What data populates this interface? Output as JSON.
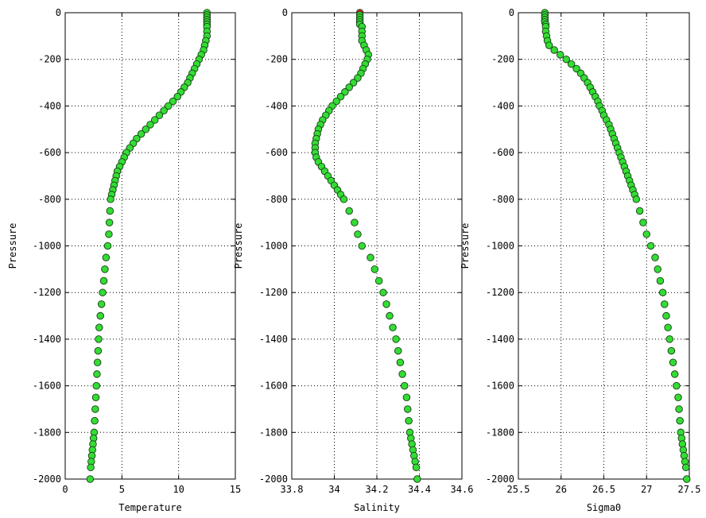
{
  "chart_data": [
    {
      "type": "scatter",
      "xlabel": "Temperature",
      "ylabel": "Pressure",
      "xlim": [
        0,
        15
      ],
      "ylim": [
        -2000,
        0
      ],
      "xticks": [
        "0",
        "5",
        "10",
        "15"
      ],
      "yticks": [
        "0",
        "-200",
        "-400",
        "-600",
        "-800",
        "-1000",
        "-1200",
        "-1400",
        "-1600",
        "-1800",
        "-2000"
      ],
      "grid": true,
      "marker_color": "#33dd33",
      "highlight_color": "#dd2222",
      "series": [
        {
          "x": [
            12.5,
            12.5,
            12.5,
            12.5,
            12.5,
            12.5,
            12.5,
            12.5,
            12.5,
            12.4,
            12.3,
            12.2,
            12.0,
            11.8,
            11.6,
            11.4,
            11.2,
            11.0,
            10.8,
            10.5,
            10.2,
            9.9,
            9.5,
            9.1,
            8.7,
            8.3,
            7.9,
            7.5,
            7.1,
            6.7,
            6.3,
            6.0,
            5.7,
            5.4,
            5.2,
            5.0,
            4.8,
            4.6,
            4.5,
            4.4,
            4.3,
            4.2,
            4.1,
            4.0,
            3.95,
            3.9,
            3.85,
            3.75,
            3.6,
            3.5,
            3.4,
            3.3,
            3.2,
            3.1,
            3.0,
            2.95,
            2.9,
            2.85,
            2.8,
            2.75,
            2.7,
            2.65,
            2.6,
            2.55,
            2.5,
            2.45,
            2.4,
            2.35,
            2.3,
            2.25,
            2.2
          ],
          "y": [
            0,
            -10,
            -20,
            -30,
            -40,
            -50,
            -60,
            -80,
            -100,
            -120,
            -140,
            -160,
            -180,
            -200,
            -220,
            -240,
            -260,
            -280,
            -300,
            -320,
            -340,
            -360,
            -380,
            -400,
            -420,
            -440,
            -460,
            -480,
            -500,
            -520,
            -540,
            -560,
            -580,
            -600,
            -620,
            -640,
            -660,
            -680,
            -700,
            -720,
            -740,
            -760,
            -780,
            -800,
            -850,
            -900,
            -950,
            -1000,
            -1050,
            -1100,
            -1150,
            -1200,
            -1250,
            -1300,
            -1350,
            -1400,
            -1450,
            -1500,
            -1550,
            -1600,
            -1650,
            -1700,
            -1750,
            -1800,
            -1825,
            -1850,
            -1875,
            -1900,
            -1925,
            -1950,
            -2000
          ]
        }
      ]
    },
    {
      "type": "scatter",
      "xlabel": "Salinity",
      "ylabel": "Pressure",
      "xlim": [
        33.8,
        34.6
      ],
      "ylim": [
        -2000,
        0
      ],
      "xticks": [
        "33.8",
        "34",
        "34.2",
        "34.4",
        "34.6"
      ],
      "yticks": [
        "0",
        "-200",
        "-400",
        "-600",
        "-800",
        "-1000",
        "-1200",
        "-1400",
        "-1600",
        "-1800",
        "-2000"
      ],
      "grid": true,
      "marker_color": "#33dd33",
      "highlight_color": "#dd2222",
      "highlight_index": 0,
      "series": [
        {
          "x": [
            34.12,
            34.12,
            34.12,
            34.12,
            34.12,
            34.12,
            34.13,
            34.13,
            34.13,
            34.13,
            34.14,
            34.15,
            34.16,
            34.155,
            34.145,
            34.135,
            34.125,
            34.11,
            34.09,
            34.07,
            34.05,
            34.03,
            34.01,
            33.99,
            33.975,
            33.96,
            33.945,
            33.935,
            33.925,
            33.92,
            33.915,
            33.91,
            33.91,
            33.91,
            33.915,
            33.925,
            33.94,
            33.955,
            33.97,
            33.985,
            34.0,
            34.015,
            34.03,
            34.045,
            34.07,
            34.095,
            34.11,
            34.13,
            34.17,
            34.19,
            34.21,
            34.23,
            34.245,
            34.26,
            34.275,
            34.29,
            34.3,
            34.31,
            34.32,
            34.33,
            34.34,
            34.345,
            34.35,
            34.355,
            34.36,
            34.365,
            34.37,
            34.375,
            34.38,
            34.385,
            34.39
          ],
          "y": [
            0,
            -10,
            -20,
            -30,
            -40,
            -50,
            -60,
            -80,
            -100,
            -120,
            -140,
            -160,
            -180,
            -200,
            -220,
            -240,
            -260,
            -280,
            -300,
            -320,
            -340,
            -360,
            -380,
            -400,
            -420,
            -440,
            -460,
            -480,
            -500,
            -520,
            -540,
            -560,
            -580,
            -600,
            -620,
            -640,
            -660,
            -680,
            -700,
            -720,
            -740,
            -760,
            -780,
            -800,
            -850,
            -900,
            -950,
            -1000,
            -1050,
            -1100,
            -1150,
            -1200,
            -1250,
            -1300,
            -1350,
            -1400,
            -1450,
            -1500,
            -1550,
            -1600,
            -1650,
            -1700,
            -1750,
            -1800,
            -1825,
            -1850,
            -1875,
            -1900,
            -1925,
            -1950,
            -2000
          ]
        }
      ]
    },
    {
      "type": "scatter",
      "xlabel": "Sigma0",
      "ylabel": "Pressure",
      "xlim": [
        25.5,
        27.5
      ],
      "ylim": [
        -2000,
        0
      ],
      "xticks": [
        "25.5",
        "26",
        "26.5",
        "27",
        "27.5"
      ],
      "yticks": [
        "0",
        "-200",
        "-400",
        "-600",
        "-800",
        "-1000",
        "-1200",
        "-1400",
        "-1600",
        "-1800",
        "-2000"
      ],
      "grid": true,
      "marker_color": "#33dd33",
      "highlight_color": "#dd2222",
      "series": [
        {
          "x": [
            25.81,
            25.81,
            25.81,
            25.81,
            25.81,
            25.82,
            25.82,
            25.82,
            25.83,
            25.84,
            25.86,
            25.92,
            25.99,
            26.06,
            26.12,
            26.18,
            26.23,
            26.27,
            26.31,
            26.34,
            26.37,
            26.4,
            26.43,
            26.45,
            26.48,
            26.5,
            26.53,
            26.56,
            26.58,
            26.6,
            26.62,
            26.64,
            26.66,
            26.68,
            26.7,
            26.72,
            26.74,
            26.76,
            26.78,
            26.8,
            26.82,
            26.84,
            26.86,
            26.88,
            26.92,
            26.96,
            27.0,
            27.05,
            27.1,
            27.13,
            27.16,
            27.19,
            27.21,
            27.23,
            27.25,
            27.27,
            27.29,
            27.31,
            27.33,
            27.35,
            27.37,
            27.38,
            27.39,
            27.4,
            27.41,
            27.42,
            27.43,
            27.44,
            27.45,
            27.46,
            27.47
          ],
          "y": [
            0,
            -10,
            -20,
            -30,
            -40,
            -50,
            -60,
            -80,
            -100,
            -120,
            -140,
            -160,
            -180,
            -200,
            -220,
            -240,
            -260,
            -280,
            -300,
            -320,
            -340,
            -360,
            -380,
            -400,
            -420,
            -440,
            -460,
            -480,
            -500,
            -520,
            -540,
            -560,
            -580,
            -600,
            -620,
            -640,
            -660,
            -680,
            -700,
            -720,
            -740,
            -760,
            -780,
            -800,
            -850,
            -900,
            -950,
            -1000,
            -1050,
            -1100,
            -1150,
            -1200,
            -1250,
            -1300,
            -1350,
            -1400,
            -1450,
            -1500,
            -1550,
            -1600,
            -1650,
            -1700,
            -1750,
            -1800,
            -1825,
            -1850,
            -1875,
            -1900,
            -1925,
            -1950,
            -2000
          ]
        }
      ]
    }
  ]
}
